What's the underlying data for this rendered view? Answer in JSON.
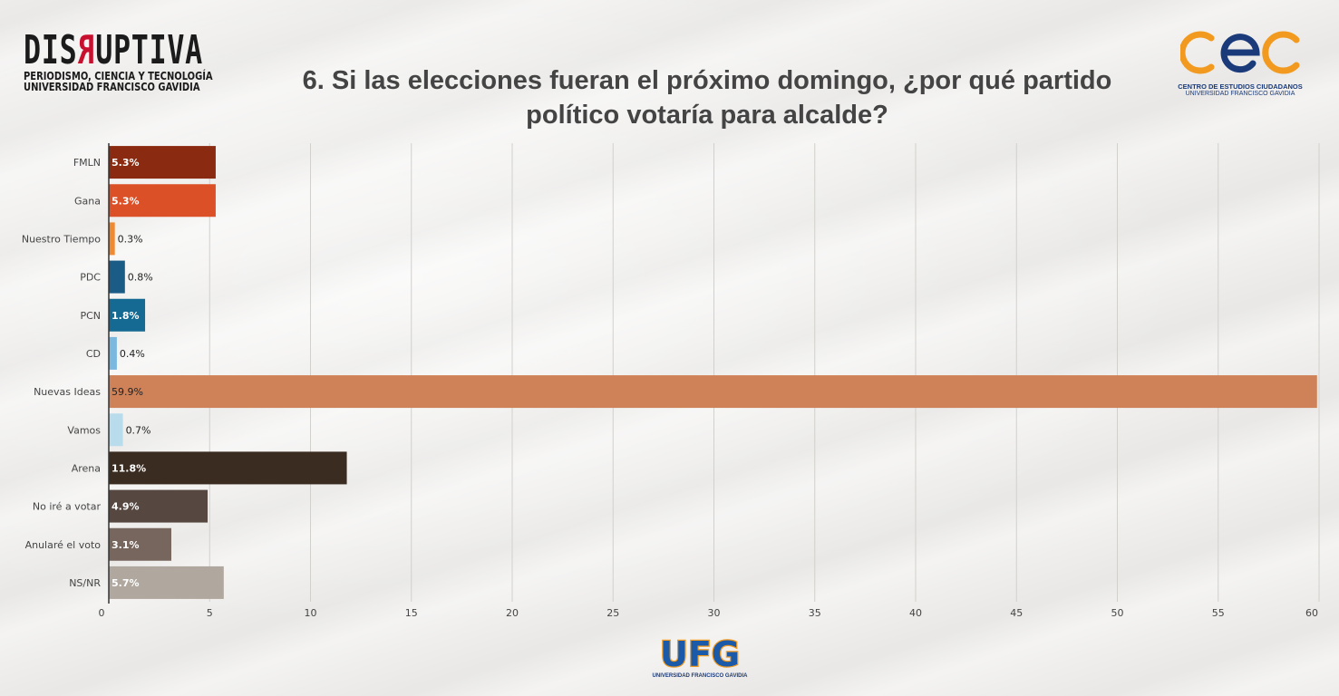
{
  "header": {
    "brand_left": {
      "word_a": "DIS",
      "word_r": "R",
      "word_b": "UPTIVA",
      "line1": "PERIODISMO, CIENCIA Y TECNOLOGÍA",
      "line2": "UNIVERSIDAD FRANCISCO GAVIDIA"
    },
    "title_line1": "6. Si las elecciones fueran el próximo domingo, ¿por qué partido",
    "title_line2": "político votaría para alcalde?",
    "brand_right": {
      "mark": "cec",
      "line1": "CENTRO DE ESTUDIOS CIUDADANOS",
      "line2": "UNIVERSIDAD FRANCISCO GAVIDIA"
    }
  },
  "footer": {
    "logo_text": "UFG",
    "logo_caption": "UNIVERSIDAD FRANCISCO GAVIDIA"
  },
  "chart_data": {
    "type": "bar",
    "orientation": "horizontal",
    "title": "6. Si las elecciones fueran el próximo domingo, ¿por qué partido político votaría para alcalde?",
    "xlabel": "",
    "ylabel": "",
    "xlim": [
      0,
      60
    ],
    "xticks": [
      0,
      5,
      10,
      15,
      20,
      25,
      30,
      35,
      40,
      45,
      50,
      55,
      60
    ],
    "grid": "vertical",
    "legend": "none",
    "categories": [
      "FMLN",
      "Gana",
      "Nuestro Tiempo",
      "PDC",
      "PCN",
      "CD",
      "Nuevas Ideas",
      "Vamos",
      "Arena",
      "No iré a votar",
      "Anularé el voto",
      "NS/NR"
    ],
    "values": [
      5.3,
      5.3,
      0.3,
      0.8,
      1.8,
      0.4,
      59.9,
      0.7,
      11.8,
      4.9,
      3.1,
      5.7
    ],
    "data_labels": [
      "5.3%",
      "5.3%",
      "0.3%",
      "0.8%",
      "1.8%",
      "0.4%",
      "59.9%",
      "0.7%",
      "11.8%",
      "4.9%",
      "3.1%",
      "5.7%"
    ],
    "colors": [
      "#8a2a10",
      "#dc5027",
      "#ef8a33",
      "#1a5c86",
      "#146a92",
      "#7ab8df",
      "#cf8257",
      "#b9dcec",
      "#3a2c20",
      "#564740",
      "#76665d",
      "#b0a89f"
    ],
    "label_colors": [
      "#ffffff",
      "#ffffff",
      "#222222",
      "#222222",
      "#ffffff",
      "#222222",
      "#222222",
      "#222222",
      "#ffffff",
      "#ffffff",
      "#ffffff",
      "#ffffff"
    ]
  }
}
